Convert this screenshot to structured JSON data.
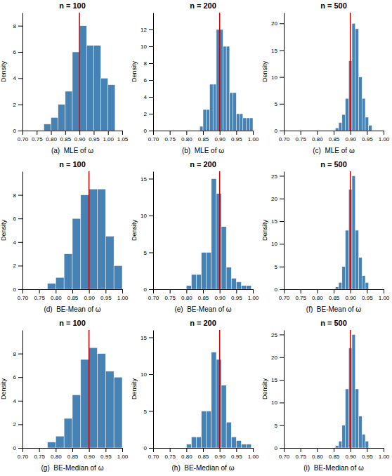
{
  "chart_data": [
    {
      "type": "histogram",
      "title": "n = 100",
      "xlabel": "(a)  MLE of ω",
      "ylabel": "Density",
      "bins": [
        0.775,
        0.8,
        0.825,
        0.85,
        0.875,
        0.9,
        0.925,
        0.95,
        0.975,
        1.0,
        1.025
      ],
      "values": [
        0.5,
        1.0,
        2.0,
        3.0,
        6.0,
        8.0,
        6.5,
        6.5,
        4.0,
        3.5
      ],
      "xlim": [
        0.7,
        1.05
      ],
      "xticks": [
        {
          "value": 0.7,
          "label": "0.70"
        },
        {
          "value": 0.75,
          "label": "0.75"
        },
        {
          "value": 0.8,
          "label": "0.80"
        },
        {
          "value": 0.85,
          "label": "0.85"
        },
        {
          "value": 0.9,
          "label": "0.90"
        },
        {
          "value": 0.95,
          "label": "0.95"
        },
        {
          "value": 1.0,
          "label": "1.00"
        },
        {
          "value": 1.05,
          "label": "1.05"
        }
      ],
      "ylim": [
        0,
        9
      ],
      "yticks": [
        0,
        2,
        4,
        6,
        8
      ],
      "vline": {
        "value": 0.9,
        "color": "#cc0000"
      }
    },
    {
      "type": "histogram",
      "title": "n = 200",
      "xlabel": "(b)  MLE of ω",
      "ylabel": "Density",
      "bins": [
        0.84,
        0.85,
        0.86,
        0.87,
        0.88,
        0.89,
        0.9,
        0.91,
        0.92,
        0.93,
        0.94,
        0.95,
        0.96,
        0.97,
        0.98,
        0.99,
        1.0
      ],
      "values": [
        0.5,
        2.5,
        2.5,
        5.5,
        5.5,
        12.0,
        12.0,
        10.0,
        10.0,
        4.5,
        4.5,
        2.0,
        2.0,
        1.5,
        1.5,
        1.5
      ],
      "xlim": [
        0.7,
        1.0
      ],
      "xticks": [
        {
          "value": 0.7,
          "label": "0.70"
        },
        {
          "value": 0.75,
          "label": "0.75"
        },
        {
          "value": 0.8,
          "label": "0.80"
        },
        {
          "value": 0.85,
          "label": "0.85"
        },
        {
          "value": 0.9,
          "label": "0.90"
        },
        {
          "value": 0.95,
          "label": "0.95"
        },
        {
          "value": 1.0,
          "label": "1.00"
        }
      ],
      "ylim": [
        0,
        14
      ],
      "yticks": [
        0,
        2,
        4,
        6,
        8,
        10,
        12
      ],
      "vline": {
        "value": 0.9,
        "color": "#cc0000"
      }
    },
    {
      "type": "histogram",
      "title": "n = 500",
      "xlabel": "(c)  MLE of ω",
      "ylabel": "Density",
      "bins": [
        0.855,
        0.865,
        0.875,
        0.885,
        0.895,
        0.905,
        0.915,
        0.925,
        0.935,
        0.945,
        0.955,
        0.965
      ],
      "values": [
        0.5,
        1.5,
        3.0,
        6.0,
        13.0,
        20.0,
        19.0,
        10.0,
        6.0,
        2.5,
        1.0
      ],
      "xlim": [
        0.7,
        1.0
      ],
      "xticks": [
        {
          "value": 0.7,
          "label": "0.70"
        },
        {
          "value": 0.75,
          "label": "0.75"
        },
        {
          "value": 0.8,
          "label": "0.80"
        },
        {
          "value": 0.85,
          "label": "0.85"
        },
        {
          "value": 0.9,
          "label": "0.90"
        },
        {
          "value": 0.95,
          "label": "0.95"
        },
        {
          "value": 1.0,
          "label": "1.00"
        }
      ],
      "ylim": [
        0,
        22
      ],
      "yticks": [
        0,
        5,
        10,
        15,
        20
      ],
      "vline": {
        "value": 0.9,
        "color": "#cc0000"
      }
    },
    {
      "type": "histogram",
      "title": "n = 100",
      "xlabel": "(d)  BE-Mean of ω",
      "ylabel": "Density",
      "bins": [
        0.775,
        0.8,
        0.825,
        0.85,
        0.875,
        0.9,
        0.925,
        0.95,
        0.975,
        1.0
      ],
      "values": [
        0.5,
        1.0,
        3.0,
        6.0,
        8.0,
        8.5,
        8.5,
        4.5,
        2.0
      ],
      "xlim": [
        0.7,
        1.0
      ],
      "xticks": [
        {
          "value": 0.7,
          "label": "0.70"
        },
        {
          "value": 0.75,
          "label": "0.75"
        },
        {
          "value": 0.8,
          "label": "0.80"
        },
        {
          "value": 0.85,
          "label": "0.85"
        },
        {
          "value": 0.9,
          "label": "0.90"
        },
        {
          "value": 0.95,
          "label": "0.95"
        },
        {
          "value": 1.0,
          "label": "1.00"
        }
      ],
      "ylim": [
        0,
        10
      ],
      "yticks": [
        0,
        2,
        4,
        6,
        8
      ],
      "vline": {
        "value": 0.9,
        "color": "#cc0000"
      }
    },
    {
      "type": "histogram",
      "title": "n = 200",
      "xlabel": "(e)  BE-Mean of ω",
      "ylabel": "Density",
      "bins": [
        0.8,
        0.815,
        0.83,
        0.845,
        0.86,
        0.875,
        0.89,
        0.905,
        0.92,
        0.935,
        0.95,
        0.965,
        0.98,
        0.995
      ],
      "values": [
        0.5,
        2.0,
        2.0,
        5.0,
        5.0,
        15.0,
        13.0,
        8.5,
        3.0,
        1.5,
        1.0,
        0.5,
        0.5
      ],
      "xlim": [
        0.7,
        1.0
      ],
      "xticks": [
        {
          "value": 0.7,
          "label": "0.70"
        },
        {
          "value": 0.75,
          "label": "0.75"
        },
        {
          "value": 0.8,
          "label": "0.80"
        },
        {
          "value": 0.85,
          "label": "0.85"
        },
        {
          "value": 0.9,
          "label": "0.90"
        },
        {
          "value": 0.95,
          "label": "0.95"
        },
        {
          "value": 1.0,
          "label": "1.00"
        }
      ],
      "ylim": [
        0,
        16
      ],
      "yticks": [
        0,
        5,
        10,
        15
      ],
      "vline": {
        "value": 0.9,
        "color": "#cc0000"
      }
    },
    {
      "type": "histogram",
      "title": "n = 500",
      "xlabel": "(f)  BE-Mean of ω",
      "ylabel": "Density",
      "bins": [
        0.855,
        0.865,
        0.875,
        0.885,
        0.895,
        0.905,
        0.915,
        0.925,
        0.935,
        0.945,
        0.955
      ],
      "values": [
        0.5,
        1.5,
        5.0,
        13.0,
        22.0,
        25.0,
        13.0,
        7.0,
        3.0,
        1.5
      ],
      "xlim": [
        0.7,
        1.0
      ],
      "xticks": [
        {
          "value": 0.7,
          "label": "0.70"
        },
        {
          "value": 0.75,
          "label": "0.75"
        },
        {
          "value": 0.8,
          "label": "0.80"
        },
        {
          "value": 0.85,
          "label": "0.85"
        },
        {
          "value": 0.9,
          "label": "0.90"
        },
        {
          "value": 0.95,
          "label": "0.95"
        },
        {
          "value": 1.0,
          "label": "1.00"
        }
      ],
      "ylim": [
        0,
        26
      ],
      "yticks": [
        0,
        5,
        10,
        15,
        20,
        25
      ],
      "vline": {
        "value": 0.9,
        "color": "#cc0000"
      }
    },
    {
      "type": "histogram",
      "title": "n = 100",
      "xlabel": "(g)  BE-Median of ω",
      "ylabel": "Density",
      "bins": [
        0.775,
        0.8,
        0.825,
        0.85,
        0.875,
        0.9,
        0.925,
        0.95,
        0.975,
        1.0
      ],
      "values": [
        0.5,
        1.0,
        2.5,
        4.5,
        7.5,
        8.5,
        8.0,
        6.5,
        6.0
      ],
      "xlim": [
        0.7,
        1.0
      ],
      "xticks": [
        {
          "value": 0.7,
          "label": "0.70"
        },
        {
          "value": 0.75,
          "label": "0.75"
        },
        {
          "value": 0.8,
          "label": "0.80"
        },
        {
          "value": 0.85,
          "label": "0.85"
        },
        {
          "value": 0.9,
          "label": "0.90"
        },
        {
          "value": 0.95,
          "label": "0.95"
        },
        {
          "value": 1.0,
          "label": "1.00"
        }
      ],
      "ylim": [
        0,
        10
      ],
      "yticks": [
        0,
        2,
        4,
        6,
        8
      ],
      "vline": {
        "value": 0.9,
        "color": "#cc0000"
      }
    },
    {
      "type": "histogram",
      "title": "n = 200",
      "xlabel": "(h)  BE-Median of ω",
      "ylabel": "Density",
      "bins": [
        0.8,
        0.815,
        0.83,
        0.845,
        0.86,
        0.875,
        0.89,
        0.905,
        0.92,
        0.935,
        0.95,
        0.965,
        0.98,
        0.995
      ],
      "values": [
        0.5,
        1.5,
        1.5,
        5.0,
        5.0,
        13.0,
        12.0,
        8.5,
        3.5,
        1.5,
        1.0,
        0.5,
        0.5
      ],
      "xlim": [
        0.7,
        1.0
      ],
      "xticks": [
        {
          "value": 0.7,
          "label": "0.70"
        },
        {
          "value": 0.75,
          "label": "0.75"
        },
        {
          "value": 0.8,
          "label": "0.80"
        },
        {
          "value": 0.85,
          "label": "0.85"
        },
        {
          "value": 0.9,
          "label": "0.90"
        },
        {
          "value": 0.95,
          "label": "0.95"
        },
        {
          "value": 1.0,
          "label": "1.00"
        }
      ],
      "ylim": [
        0,
        16
      ],
      "yticks": [
        0,
        5,
        10,
        15
      ],
      "vline": {
        "value": 0.9,
        "color": "#cc0000"
      }
    },
    {
      "type": "histogram",
      "title": "n = 500",
      "xlabel": "(i)  BE-Median of ω",
      "ylabel": "Density",
      "bins": [
        0.855,
        0.865,
        0.875,
        0.885,
        0.895,
        0.905,
        0.915,
        0.925,
        0.935,
        0.945,
        0.955
      ],
      "values": [
        0.5,
        1.5,
        5.0,
        13.0,
        22.0,
        25.0,
        13.0,
        7.0,
        3.0,
        1.5
      ],
      "xlim": [
        0.7,
        1.0
      ],
      "xticks": [
        {
          "value": 0.7,
          "label": "0.70"
        },
        {
          "value": 0.75,
          "label": "0.75"
        },
        {
          "value": 0.8,
          "label": "0.80"
        },
        {
          "value": 0.85,
          "label": "0.85"
        },
        {
          "value": 0.9,
          "label": "0.90"
        },
        {
          "value": 0.95,
          "label": "0.95"
        },
        {
          "value": 1.0,
          "label": "1.00"
        }
      ],
      "ylim": [
        0,
        26
      ],
      "yticks": [
        0,
        5,
        10,
        15,
        20,
        25
      ],
      "vline": {
        "value": 0.9,
        "color": "#cc0000"
      }
    }
  ]
}
